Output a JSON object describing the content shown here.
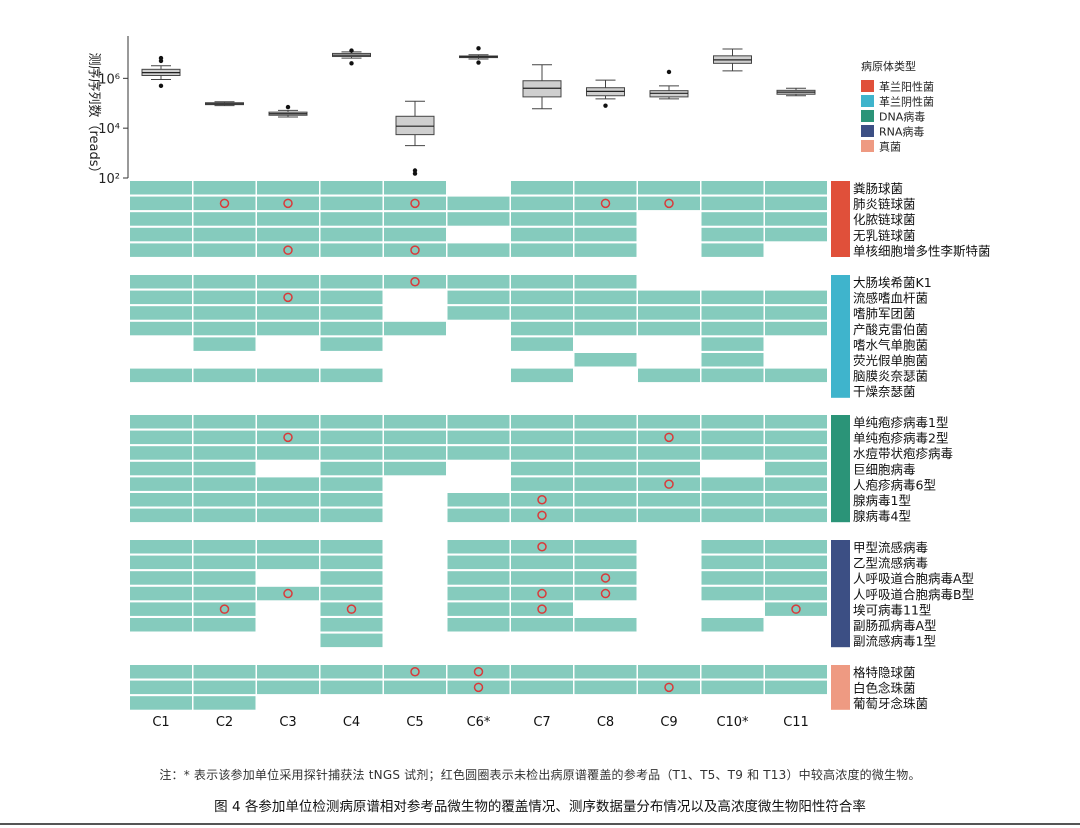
{
  "figure": {
    "note": "注：* 表示该参加单位采用探针捕获法 tNGS 试剂；红色圆圈表示未检出病原谱覆盖的参考品（T1、T5、T9 和 T13）中较高浓度的微生物。",
    "caption": "图 4   各参加单位检测病原谱相对参考品微生物的覆盖情况、测序数据量分布情况以及高浓度微生物阳性符合率"
  },
  "chart_data": [
    {
      "type": "box",
      "ylabel": "测序序列数（reads）",
      "yscale": "log10",
      "ylim": [
        100,
        50000000
      ],
      "yticks": [
        "10²",
        "10⁴",
        "10⁶"
      ],
      "categories": [
        "C1",
        "C2",
        "C3",
        "C4",
        "C5",
        "C6*",
        "C7",
        "C8",
        "C9",
        "C10*",
        "C11"
      ],
      "boxes": [
        {
          "min": 900000,
          "q1": 1300000,
          "median": 1700000,
          "q3": 2300000,
          "max": 3200000,
          "outliers": [
            500000,
            5000000,
            6500000
          ]
        },
        {
          "min": 80000,
          "q1": 88000,
          "median": 95000,
          "q3": 105000,
          "max": 115000,
          "outliers": []
        },
        {
          "min": 28000,
          "q1": 33000,
          "median": 38000,
          "q3": 44000,
          "max": 52000,
          "outliers": [
            70000
          ]
        },
        {
          "min": 6500000,
          "q1": 7500000,
          "median": 8500000,
          "q3": 10000000,
          "max": 11500000,
          "outliers": [
            4000000,
            13000000
          ]
        },
        {
          "min": 2000,
          "q1": 5500,
          "median": 12000,
          "q3": 30000,
          "max": 120000,
          "outliers": [
            150,
            200
          ]
        },
        {
          "min": 6000000,
          "q1": 6800000,
          "median": 7300000,
          "q3": 7900000,
          "max": 8800000,
          "outliers": [
            4300000,
            16000000
          ]
        },
        {
          "min": 60000,
          "q1": 180000,
          "median": 400000,
          "q3": 800000,
          "max": 3500000,
          "outliers": []
        },
        {
          "min": 150000,
          "q1": 200000,
          "median": 300000,
          "q3": 420000,
          "max": 850000,
          "outliers": [
            80000
          ]
        },
        {
          "min": 150000,
          "q1": 180000,
          "median": 250000,
          "q3": 320000,
          "max": 500000,
          "outliers": [
            1800000
          ]
        },
        {
          "min": 2000000,
          "q1": 4000000,
          "median": 5500000,
          "q3": 8000000,
          "max": 15000000,
          "outliers": []
        },
        {
          "min": 200000,
          "q1": 230000,
          "median": 280000,
          "q3": 330000,
          "max": 400000,
          "outliers": []
        }
      ]
    },
    {
      "type": "heatmap",
      "columns": [
        "C1",
        "C2",
        "C3",
        "C4",
        "C5",
        "C6*",
        "C7",
        "C8",
        "C9",
        "C10*",
        "C11"
      ],
      "legend": {
        "title": "病原体类型",
        "items": [
          {
            "label": "革兰阳性菌",
            "color": "#e0503a"
          },
          {
            "label": "革兰阴性菌",
            "color": "#3fb4cc"
          },
          {
            "label": "DNA病毒",
            "color": "#2b9478"
          },
          {
            "label": "RNA病毒",
            "color": "#3c4f84"
          },
          {
            "label": "真菌",
            "color": "#ee9a82"
          }
        ]
      },
      "cell_color": "#85cbbd",
      "marker_color": "#d93a3a",
      "groups": [
        {
          "type_index": 0,
          "rows": [
            {
              "name": "粪肠球菌",
              "cells": [
                1,
                1,
                1,
                1,
                1,
                0,
                1,
                1,
                1,
                1,
                1
              ],
              "marks": []
            },
            {
              "name": "肺炎链球菌",
              "cells": [
                1,
                1,
                1,
                1,
                1,
                1,
                1,
                1,
                1,
                1,
                1
              ],
              "marks": [
                1,
                2,
                4,
                7,
                8
              ]
            },
            {
              "name": "化脓链球菌",
              "cells": [
                1,
                1,
                1,
                1,
                1,
                1,
                1,
                1,
                0,
                1,
                1
              ],
              "marks": []
            },
            {
              "name": "无乳链球菌",
              "cells": [
                1,
                1,
                1,
                1,
                1,
                0,
                1,
                1,
                0,
                1,
                1
              ],
              "marks": []
            },
            {
              "name": "单核细胞增多性李斯特菌",
              "cells": [
                1,
                1,
                1,
                1,
                1,
                1,
                1,
                1,
                0,
                1,
                0
              ],
              "marks": [
                2,
                4
              ]
            }
          ]
        },
        {
          "type_index": 1,
          "rows": [
            {
              "name": "大肠埃希菌K1",
              "cells": [
                1,
                1,
                1,
                1,
                1,
                1,
                1,
                1,
                0,
                0,
                0
              ],
              "marks": [
                4
              ]
            },
            {
              "name": "流感嗜血杆菌",
              "cells": [
                1,
                1,
                1,
                1,
                0,
                1,
                1,
                1,
                1,
                1,
                1
              ],
              "marks": [
                2
              ]
            },
            {
              "name": "嗜肺军团菌",
              "cells": [
                1,
                1,
                1,
                1,
                0,
                1,
                1,
                1,
                1,
                1,
                1
              ],
              "marks": []
            },
            {
              "name": "产酸克雷伯菌",
              "cells": [
                1,
                1,
                1,
                1,
                1,
                0,
                1,
                1,
                1,
                1,
                1
              ],
              "marks": []
            },
            {
              "name": "嗜水气单胞菌",
              "cells": [
                0,
                1,
                0,
                1,
                0,
                0,
                1,
                0,
                0,
                1,
                0
              ],
              "marks": []
            },
            {
              "name": "荧光假单胞菌",
              "cells": [
                0,
                0,
                0,
                0,
                0,
                0,
                0,
                1,
                0,
                1,
                0
              ],
              "marks": []
            },
            {
              "name": "脑膜炎奈瑟菌",
              "cells": [
                1,
                1,
                1,
                1,
                0,
                0,
                1,
                0,
                1,
                1,
                1
              ],
              "marks": []
            },
            {
              "name": "干燥奈瑟菌",
              "cells": [
                0,
                0,
                0,
                0,
                0,
                0,
                0,
                0,
                0,
                0,
                0
              ],
              "marks": []
            }
          ]
        },
        {
          "type_index": 2,
          "rows": [
            {
              "name": "单纯疱疹病毒1型",
              "cells": [
                1,
                1,
                1,
                1,
                1,
                1,
                1,
                1,
                1,
                1,
                1
              ],
              "marks": []
            },
            {
              "name": "单纯疱疹病毒2型",
              "cells": [
                1,
                1,
                1,
                1,
                1,
                1,
                1,
                1,
                1,
                1,
                1
              ],
              "marks": [
                2,
                8
              ]
            },
            {
              "name": "水痘带状疱疹病毒",
              "cells": [
                1,
                1,
                1,
                1,
                1,
                1,
                1,
                1,
                1,
                1,
                1
              ],
              "marks": []
            },
            {
              "name": "巨细胞病毒",
              "cells": [
                1,
                1,
                0,
                1,
                1,
                0,
                1,
                1,
                1,
                0,
                1
              ],
              "marks": []
            },
            {
              "name": "人疱疹病毒6型",
              "cells": [
                1,
                1,
                1,
                1,
                0,
                0,
                1,
                1,
                1,
                1,
                1
              ],
              "marks": [
                8
              ]
            },
            {
              "name": "腺病毒1型",
              "cells": [
                1,
                1,
                1,
                1,
                0,
                1,
                1,
                1,
                1,
                1,
                1
              ],
              "marks": [
                6
              ]
            },
            {
              "name": "腺病毒4型",
              "cells": [
                1,
                1,
                1,
                1,
                0,
                1,
                1,
                1,
                1,
                1,
                1
              ],
              "marks": [
                6
              ]
            }
          ]
        },
        {
          "type_index": 3,
          "rows": [
            {
              "name": "甲型流感病毒",
              "cells": [
                1,
                1,
                1,
                1,
                0,
                1,
                1,
                1,
                0,
                1,
                1
              ],
              "marks": [
                6
              ]
            },
            {
              "name": "乙型流感病毒",
              "cells": [
                1,
                1,
                1,
                1,
                0,
                1,
                1,
                1,
                0,
                1,
                1
              ],
              "marks": []
            },
            {
              "name": "人呼吸道合胞病毒A型",
              "cells": [
                1,
                1,
                0,
                1,
                0,
                1,
                1,
                1,
                0,
                1,
                1
              ],
              "marks": [
                7
              ]
            },
            {
              "name": "人呼吸道合胞病毒B型",
              "cells": [
                1,
                1,
                1,
                1,
                0,
                1,
                1,
                1,
                0,
                1,
                1
              ],
              "marks": [
                2,
                6,
                7
              ]
            },
            {
              "name": "埃可病毒11型",
              "cells": [
                1,
                1,
                0,
                1,
                0,
                1,
                1,
                0,
                0,
                0,
                1
              ],
              "marks": [
                1,
                3,
                6,
                10
              ]
            },
            {
              "name": "副肠孤病毒A型",
              "cells": [
                1,
                1,
                0,
                1,
                0,
                1,
                1,
                1,
                0,
                1,
                0
              ],
              "marks": []
            },
            {
              "name": "副流感病毒1型",
              "cells": [
                0,
                0,
                0,
                1,
                0,
                0,
                0,
                0,
                0,
                0,
                0
              ],
              "marks": []
            }
          ]
        },
        {
          "type_index": 4,
          "rows": [
            {
              "name": "格特隐球菌",
              "cells": [
                1,
                1,
                1,
                1,
                1,
                1,
                1,
                1,
                1,
                1,
                1
              ],
              "marks": [
                4,
                5
              ]
            },
            {
              "name": "白色念珠菌",
              "cells": [
                1,
                1,
                1,
                1,
                1,
                1,
                1,
                1,
                1,
                1,
                1
              ],
              "marks": [
                5,
                8
              ]
            },
            {
              "name": "葡萄牙念珠菌",
              "cells": [
                1,
                1,
                0,
                0,
                0,
                0,
                0,
                0,
                0,
                0,
                0
              ],
              "marks": []
            }
          ]
        }
      ]
    }
  ]
}
